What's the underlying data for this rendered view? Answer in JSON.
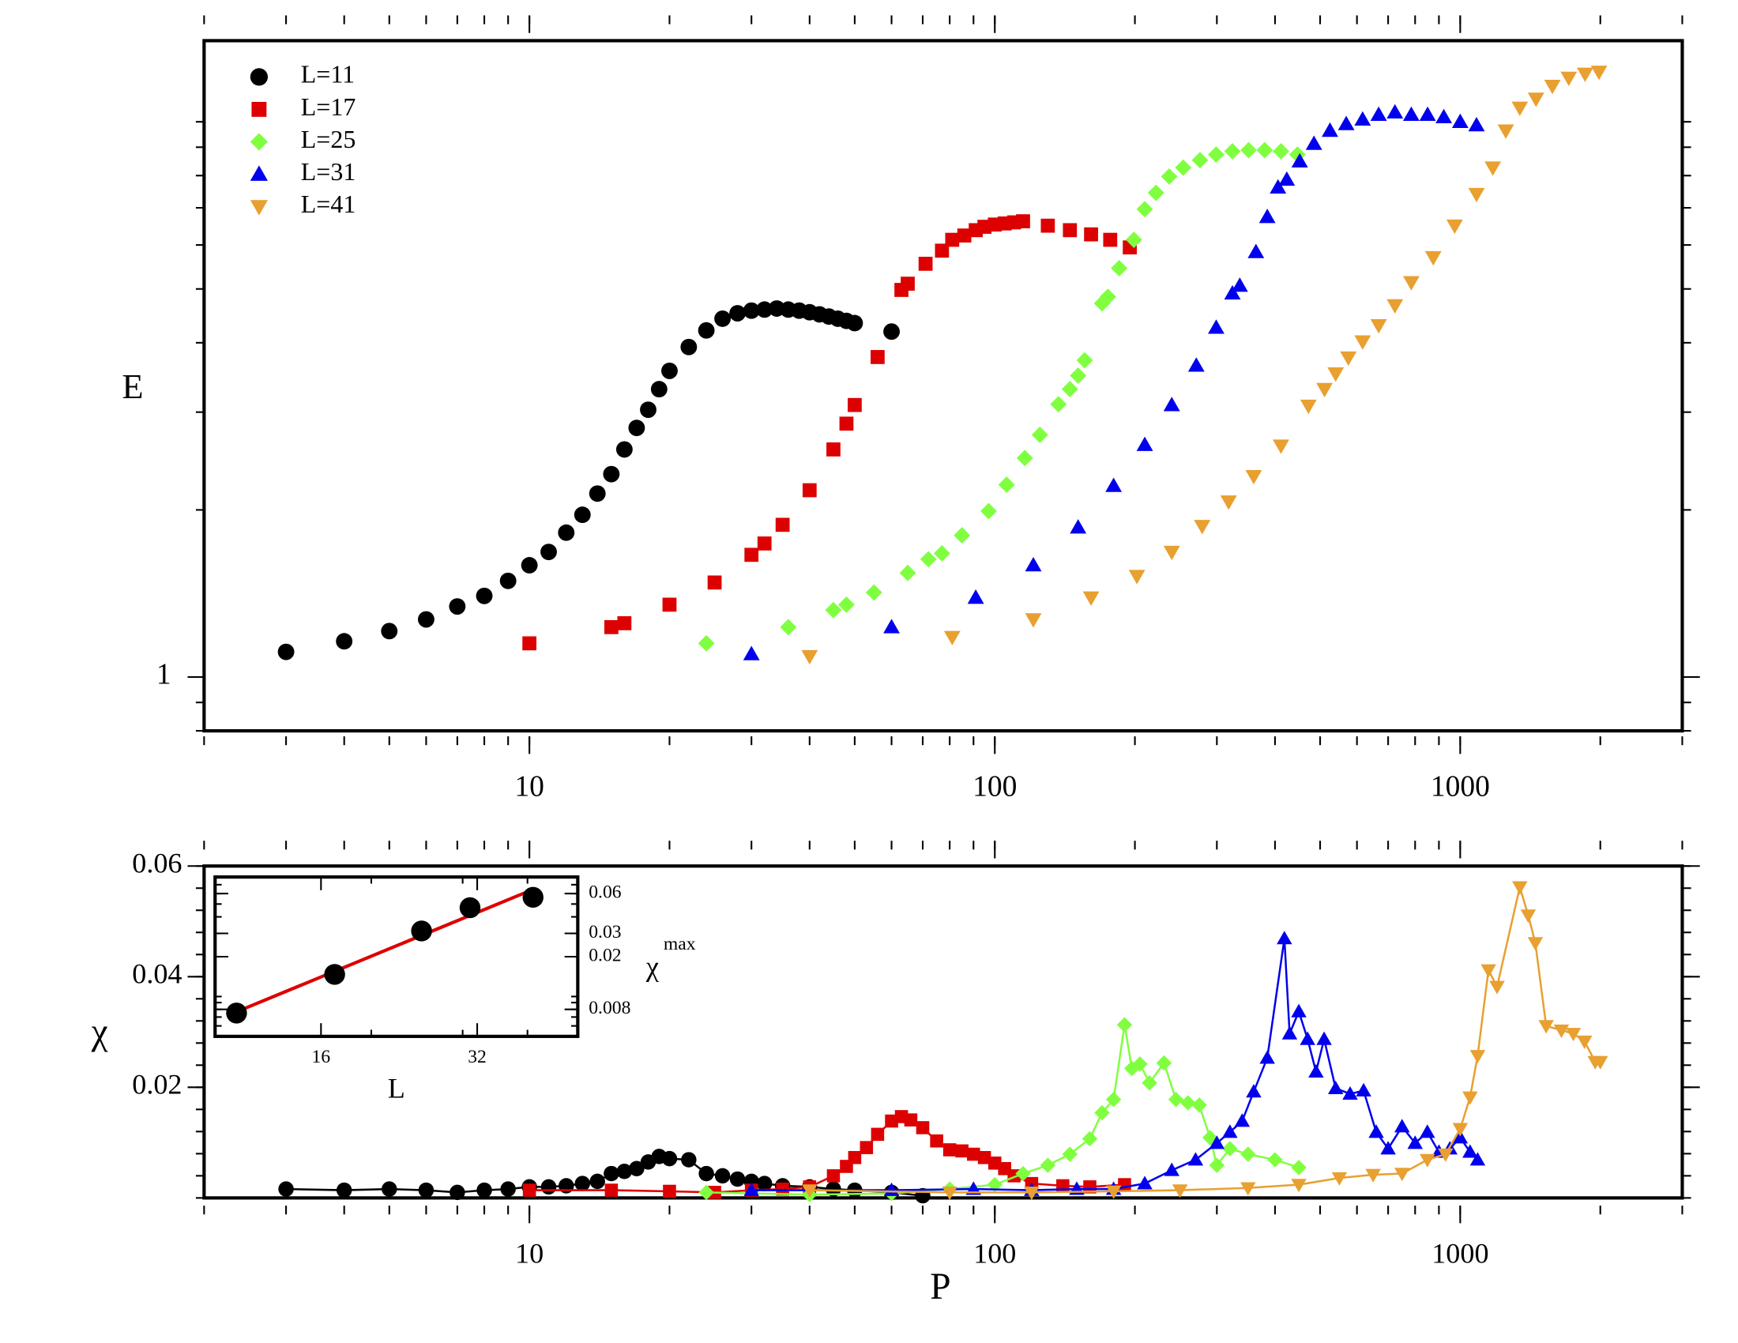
{
  "chart_data": [
    {
      "type": "scatter",
      "ylabel": "E",
      "log_x": true,
      "log_y": true,
      "xlim": [
        2,
        3000
      ],
      "xticks": [
        10,
        100,
        1000
      ],
      "ylim": [
        0.8,
        14
      ],
      "yticks": [
        1
      ],
      "legend": "upper left",
      "series": [
        {
          "name": "L=11",
          "color": "#000000",
          "marker": "circle",
          "x": [
            3,
            4,
            5,
            6,
            7,
            8,
            9,
            10,
            11,
            12,
            13,
            14,
            15,
            16,
            17,
            18,
            19,
            20,
            22,
            24,
            26,
            28,
            30,
            32,
            34,
            36,
            38,
            40,
            42,
            44,
            46,
            48,
            50,
            60
          ],
          "values": [
            1.11,
            1.16,
            1.21,
            1.27,
            1.34,
            1.4,
            1.49,
            1.59,
            1.68,
            1.82,
            1.96,
            2.14,
            2.32,
            2.57,
            2.81,
            3.03,
            3.3,
            3.56,
            3.93,
            4.21,
            4.42,
            4.52,
            4.57,
            4.59,
            4.61,
            4.59,
            4.57,
            4.54,
            4.5,
            4.46,
            4.42,
            4.38,
            4.34,
            4.19
          ]
        },
        {
          "name": "L=17",
          "color": "#dd0000",
          "marker": "square",
          "x": [
            10,
            15,
            16,
            20,
            25,
            30,
            32,
            35,
            40,
            45,
            48,
            50,
            56,
            63,
            65,
            71,
            77,
            81,
            86,
            91,
            95,
            100,
            105,
            110,
            115,
            130,
            145,
            161,
            177,
            195
          ],
          "values": [
            1.15,
            1.23,
            1.25,
            1.35,
            1.48,
            1.66,
            1.74,
            1.88,
            2.17,
            2.57,
            2.86,
            3.09,
            3.77,
            4.98,
            5.11,
            5.55,
            5.86,
            6.13,
            6.24,
            6.38,
            6.47,
            6.53,
            6.56,
            6.59,
            6.62,
            6.5,
            6.38,
            6.27,
            6.13,
            5.94
          ]
        },
        {
          "name": "L=25",
          "color": "#80ff40",
          "marker": "diamond",
          "x": [
            24,
            36,
            45,
            48,
            55,
            65,
            72,
            77,
            85,
            97,
            106,
            116,
            125,
            137,
            145,
            151,
            156,
            170,
            175,
            185,
            199,
            210,
            222,
            237,
            254,
            276,
            299,
            324,
            351,
            380,
            412,
            447
          ],
          "values": [
            1.15,
            1.23,
            1.32,
            1.35,
            1.42,
            1.54,
            1.63,
            1.67,
            1.8,
            1.99,
            2.22,
            2.48,
            2.73,
            3.1,
            3.3,
            3.49,
            3.72,
            4.71,
            4.84,
            5.45,
            6.13,
            6.96,
            7.45,
            7.97,
            8.27,
            8.53,
            8.73,
            8.85,
            8.89,
            8.89,
            8.85,
            8.73
          ]
        },
        {
          "name": "L=31",
          "color": "#0000ee",
          "marker": "triangle-up",
          "x": [
            30,
            60,
            91,
            121,
            151,
            180,
            210,
            240,
            271,
            299,
            324,
            336,
            364,
            385,
            406,
            424,
            452,
            485,
            525,
            569,
            617,
            668,
            724,
            785,
            851,
            922,
            1000,
            1084
          ],
          "values": [
            1.1,
            1.23,
            1.39,
            1.59,
            1.86,
            2.21,
            2.62,
            3.09,
            3.64,
            4.26,
            4.91,
            5.07,
            5.83,
            6.74,
            7.62,
            7.87,
            8.49,
            9.13,
            9.64,
            9.91,
            10.1,
            10.3,
            10.4,
            10.3,
            10.3,
            10.2,
            10.0,
            9.86
          ]
        },
        {
          "name": "L=41",
          "color": "#e8a030",
          "marker": "triangle-down",
          "x": [
            40,
            81,
            121,
            161,
            202,
            240,
            279,
            318,
            360,
            412,
            472,
            511,
            540,
            575,
            617,
            668,
            724,
            785,
            875,
            973,
            1084,
            1175,
            1253,
            1343,
            1455,
            1578,
            1711,
            1855,
            1987
          ],
          "values": [
            1.09,
            1.18,
            1.27,
            1.39,
            1.52,
            1.68,
            1.87,
            2.07,
            2.3,
            2.61,
            3.08,
            3.3,
            3.52,
            3.76,
            4.02,
            4.3,
            4.67,
            5.14,
            5.7,
            6.5,
            7.41,
            8.27,
            9.64,
            10.6,
            11.0,
            11.6,
            12.0,
            12.2,
            12.3
          ]
        }
      ]
    },
    {
      "type": "line",
      "xlabel": "P",
      "ylabel": "χ",
      "log_x": true,
      "log_y": false,
      "xlim": [
        2,
        3000
      ],
      "xticks": [
        10,
        100,
        1000
      ],
      "ylim": [
        0,
        0.06
      ],
      "yticks": [
        0.02,
        0.04,
        0.06
      ],
      "series": [
        {
          "color": "#000000",
          "marker": "circle",
          "x": [
            3,
            4,
            5,
            6,
            7,
            8,
            9,
            10,
            11,
            12,
            13,
            14,
            15,
            16,
            17,
            18,
            19,
            20,
            22,
            24,
            26,
            28,
            30,
            32,
            35,
            40,
            45,
            50,
            60,
            70
          ],
          "values": [
            0.0016,
            0.0014,
            0.0016,
            0.0014,
            0.001,
            0.0014,
            0.0016,
            0.002,
            0.002,
            0.0022,
            0.0026,
            0.003,
            0.0044,
            0.0048,
            0.0053,
            0.0065,
            0.0075,
            0.0071,
            0.0069,
            0.0044,
            0.004,
            0.0034,
            0.003,
            0.0026,
            0.0022,
            0.002,
            0.0016,
            0.0014,
            0.001,
            0.0004
          ]
        },
        {
          "color": "#dd0000",
          "marker": "square",
          "x": [
            10,
            15,
            20,
            25,
            30,
            35,
            40,
            45,
            48,
            50,
            53,
            56,
            60,
            63,
            66,
            70,
            75,
            80,
            85,
            90,
            95,
            100,
            105,
            110,
            120,
            140,
            160,
            190
          ],
          "values": [
            0.0014,
            0.0014,
            0.0012,
            0.001,
            0.0014,
            0.0016,
            0.002,
            0.004,
            0.0057,
            0.0073,
            0.0091,
            0.0115,
            0.0139,
            0.0147,
            0.0141,
            0.0127,
            0.0103,
            0.0087,
            0.0085,
            0.0079,
            0.0073,
            0.0063,
            0.0053,
            0.004,
            0.0026,
            0.0022,
            0.002,
            0.0024
          ]
        },
        {
          "color": "#80ff40",
          "marker": "diamond",
          "x": [
            24,
            40,
            60,
            80,
            100,
            115,
            130,
            145,
            160,
            170,
            180,
            190,
            197,
            205,
            215,
            231,
            245,
            260,
            275,
            290,
            300,
            320,
            350,
            400,
            450
          ],
          "values": [
            0.001,
            0.0006,
            0.0008,
            0.0016,
            0.0024,
            0.0044,
            0.0059,
            0.0079,
            0.0107,
            0.0154,
            0.0178,
            0.0313,
            0.0234,
            0.0242,
            0.0208,
            0.0244,
            0.0178,
            0.0172,
            0.0168,
            0.0109,
            0.0059,
            0.0089,
            0.0079,
            0.0069,
            0.0055
          ]
        },
        {
          "color": "#0000ee",
          "marker": "triangle-up",
          "x": [
            30,
            60,
            90,
            120,
            150,
            180,
            210,
            240,
            270,
            300,
            320,
            340,
            360,
            385,
            419,
            430,
            450,
            470,
            490,
            510,
            540,
            580,
            620,
            660,
            700,
            750,
            800,
            850,
            900,
            950,
            1000,
            1050,
            1090
          ],
          "values": [
            0.0014,
            0.0014,
            0.0016,
            0.0014,
            0.0016,
            0.0016,
            0.0026,
            0.005,
            0.0069,
            0.0099,
            0.0119,
            0.0139,
            0.0192,
            0.0253,
            0.0469,
            0.0297,
            0.0337,
            0.0287,
            0.0228,
            0.0287,
            0.0198,
            0.0188,
            0.0194,
            0.0119,
            0.0089,
            0.0129,
            0.0099,
            0.0119,
            0.0083,
            0.0089,
            0.0109,
            0.0083,
            0.0069
          ]
        },
        {
          "color": "#e8a030",
          "marker": "triangle-down",
          "x": [
            40,
            80,
            120,
            180,
            250,
            350,
            450,
            550,
            650,
            750,
            850,
            930,
            1000,
            1050,
            1090,
            1150,
            1200,
            1343,
            1400,
            1450,
            1530,
            1650,
            1750,
            1850,
            1950,
            2000
          ],
          "values": [
            0.0014,
            0.001,
            0.001,
            0.0012,
            0.0014,
            0.0018,
            0.0024,
            0.0036,
            0.0042,
            0.0044,
            0.0069,
            0.0079,
            0.0125,
            0.0182,
            0.0257,
            0.0412,
            0.0382,
            0.0562,
            0.0511,
            0.0461,
            0.0311,
            0.0303,
            0.0297,
            0.0283,
            0.0246,
            0.0246
          ]
        }
      ]
    },
    {
      "type": "scatter",
      "xlabel": "L",
      "ylabel": "χ",
      "ylabel_sup": "max",
      "log_x": true,
      "log_y": true,
      "xlim": [
        10,
        50
      ],
      "xticks": [
        16,
        32
      ],
      "ylim": [
        0.005,
        0.08
      ],
      "yticks": [
        0.008,
        0.02,
        0.03,
        0.06
      ],
      "fit": true,
      "fit_color": "#dd0000",
      "series": [
        {
          "color": "#000000",
          "marker": "circle",
          "x": [
            11,
            17,
            25,
            31,
            41
          ],
          "values": [
            0.0075,
            0.0147,
            0.0313,
            0.0469,
            0.0562
          ]
        }
      ]
    }
  ]
}
